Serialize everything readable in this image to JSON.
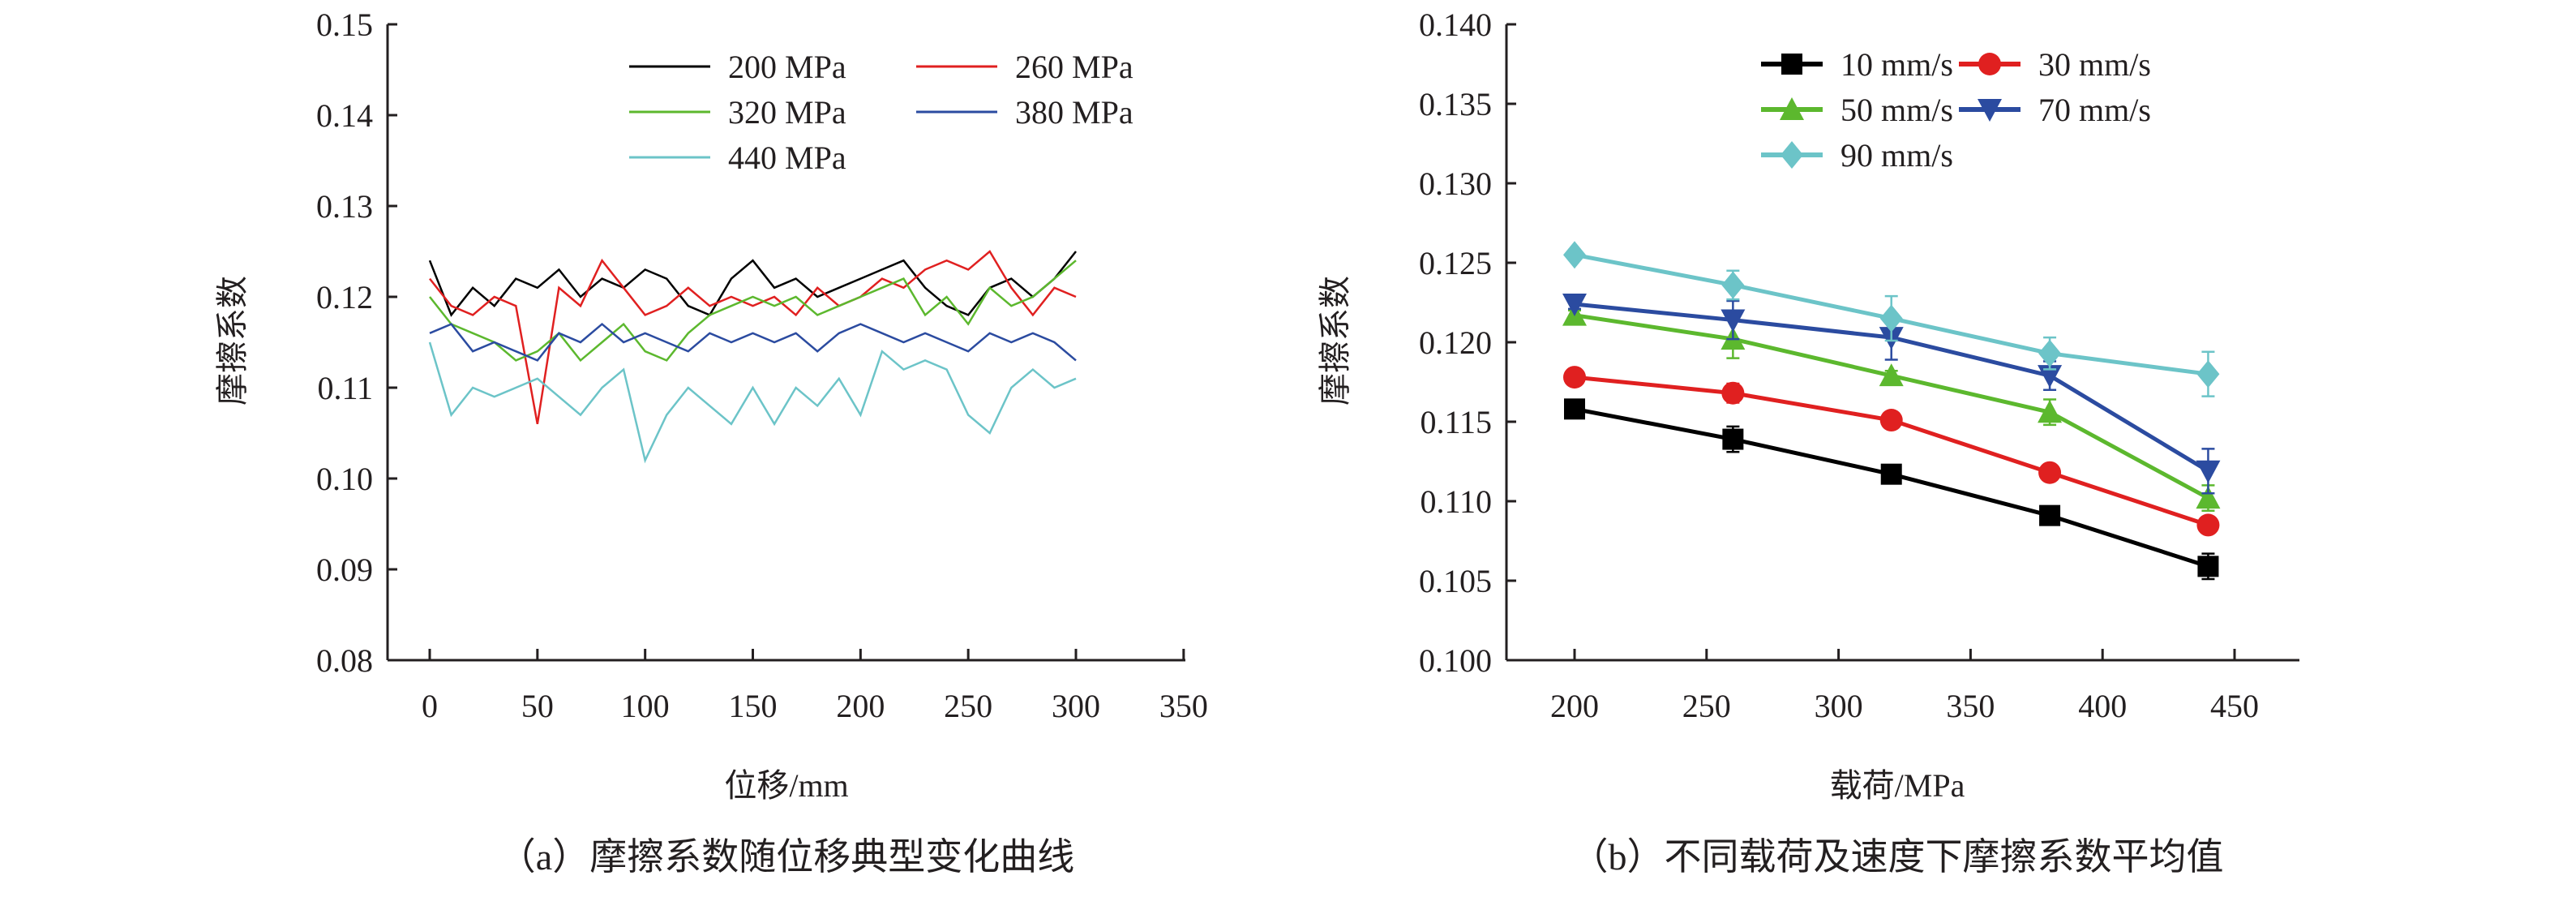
{
  "chart_data": [
    {
      "type": "line",
      "caption": "（a）摩擦系数随位移典型变化曲线",
      "xlabel": "位移/mm",
      "ylabel": "摩擦系数",
      "xlim": [
        0,
        350
      ],
      "ylim": [
        0.08,
        0.15
      ],
      "xticks": [
        "0",
        "50",
        "100",
        "150",
        "200",
        "250",
        "300",
        "350"
      ],
      "yticks": [
        "0.08",
        "0.09",
        "0.10",
        "0.11",
        "0.12",
        "0.13",
        "0.14",
        "0.15"
      ],
      "grid": false,
      "legend_position": "top-right",
      "x": [
        0,
        10,
        20,
        30,
        40,
        50,
        60,
        70,
        80,
        90,
        100,
        110,
        120,
        130,
        140,
        150,
        160,
        170,
        180,
        190,
        200,
        210,
        220,
        230,
        240,
        250,
        260,
        270,
        280,
        290,
        300
      ],
      "series": [
        {
          "name": "200 MPa",
          "color": "#000000",
          "values": [
            0.124,
            0.118,
            0.121,
            0.119,
            0.122,
            0.121,
            0.123,
            0.12,
            0.122,
            0.121,
            0.123,
            0.122,
            0.119,
            0.118,
            0.122,
            0.124,
            0.121,
            0.122,
            0.12,
            0.121,
            0.122,
            0.123,
            0.124,
            0.121,
            0.119,
            0.118,
            0.121,
            0.122,
            0.12,
            0.122,
            0.125
          ]
        },
        {
          "name": "260 MPa",
          "color": "#e02020",
          "values": [
            0.122,
            0.119,
            0.118,
            0.12,
            0.119,
            0.106,
            0.121,
            0.119,
            0.124,
            0.121,
            0.118,
            0.119,
            0.121,
            0.119,
            0.12,
            0.119,
            0.12,
            0.118,
            0.121,
            0.119,
            0.12,
            0.122,
            0.121,
            0.123,
            0.124,
            0.123,
            0.125,
            0.121,
            0.118,
            0.121,
            0.12
          ]
        },
        {
          "name": "320 MPa",
          "color": "#5cb82e",
          "values": [
            0.12,
            0.117,
            0.116,
            0.115,
            0.113,
            0.114,
            0.116,
            0.113,
            0.115,
            0.117,
            0.114,
            0.113,
            0.116,
            0.118,
            0.119,
            0.12,
            0.119,
            0.12,
            0.118,
            0.119,
            0.12,
            0.121,
            0.122,
            0.118,
            0.12,
            0.117,
            0.121,
            0.119,
            0.12,
            0.122,
            0.124
          ]
        },
        {
          "name": "380 MPa",
          "color": "#2b4ba0",
          "values": [
            0.116,
            0.117,
            0.114,
            0.115,
            0.114,
            0.113,
            0.116,
            0.115,
            0.117,
            0.115,
            0.116,
            0.115,
            0.114,
            0.116,
            0.115,
            0.116,
            0.115,
            0.116,
            0.114,
            0.116,
            0.117,
            0.116,
            0.115,
            0.116,
            0.115,
            0.114,
            0.116,
            0.115,
            0.116,
            0.115,
            0.113
          ]
        },
        {
          "name": "440 MPa",
          "color": "#6cc4c8",
          "values": [
            0.115,
            0.107,
            0.11,
            0.109,
            0.11,
            0.111,
            0.109,
            0.107,
            0.11,
            0.112,
            0.102,
            0.107,
            0.11,
            0.108,
            0.106,
            0.11,
            0.106,
            0.11,
            0.108,
            0.111,
            0.107,
            0.114,
            0.112,
            0.113,
            0.112,
            0.107,
            0.105,
            0.11,
            0.112,
            0.11,
            0.111
          ]
        }
      ]
    },
    {
      "type": "line",
      "caption": "（b）不同载荷及速度下摩擦系数平均值",
      "xlabel": "载荷/MPa",
      "ylabel": "摩擦系数",
      "xlim": [
        175,
        475
      ],
      "ylim": [
        0.1,
        0.14
      ],
      "xticks": [
        "200",
        "250",
        "300",
        "350",
        "400",
        "450"
      ],
      "yticks": [
        "0.100",
        "0.105",
        "0.110",
        "0.115",
        "0.120",
        "0.125",
        "0.130",
        "0.135",
        "0.140"
      ],
      "grid": false,
      "legend_position": "top-right",
      "x": [
        200,
        260,
        320,
        380,
        440
      ],
      "series": [
        {
          "name": "10 mm/s",
          "color": "#000000",
          "marker": "square",
          "values": [
            0.1158,
            0.1139,
            0.1117,
            0.1091,
            0.1059
          ],
          "error": [
            0.0003,
            0.0008,
            0.0003,
            0.0003,
            0.0008
          ]
        },
        {
          "name": "30 mm/s",
          "color": "#e02020",
          "marker": "circle",
          "values": [
            0.1178,
            0.1168,
            0.1151,
            0.1118,
            0.1085
          ],
          "error": [
            0.0003,
            0.0006,
            0.0003,
            0.0004,
            0.0003
          ]
        },
        {
          "name": "50 mm/s",
          "color": "#5cb82e",
          "marker": "triangle-up",
          "values": [
            0.1217,
            0.1202,
            0.1179,
            0.1156,
            0.1102
          ],
          "error": [
            0.0003,
            0.0012,
            0.0003,
            0.0008,
            0.0008
          ]
        },
        {
          "name": "70 mm/s",
          "color": "#2b4ba0",
          "marker": "triangle-down",
          "values": [
            0.1224,
            0.1214,
            0.1203,
            0.1179,
            0.1119
          ],
          "error": [
            0.0003,
            0.0012,
            0.0014,
            0.0009,
            0.0014
          ]
        },
        {
          "name": "90 mm/s",
          "color": "#6cc4c8",
          "marker": "diamond",
          "values": [
            0.1255,
            0.1236,
            0.1215,
            0.1193,
            0.118
          ],
          "error": [
            0.0003,
            0.0009,
            0.0014,
            0.001,
            0.0014
          ]
        }
      ]
    }
  ]
}
